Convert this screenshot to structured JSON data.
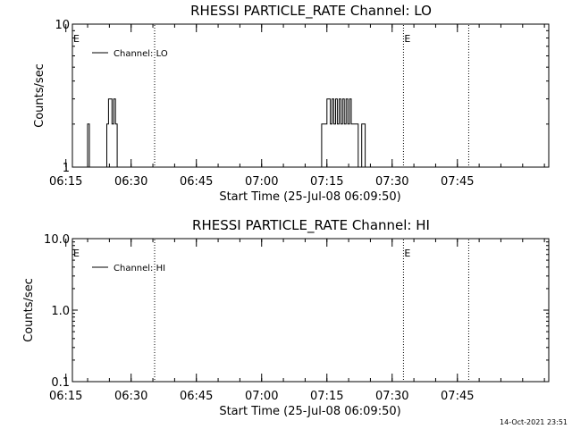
{
  "chart_data": [
    {
      "type": "line",
      "title": "RHESSI PARTICLE_RATE Channel: LO",
      "xlabel": "Start Time (25-Jul-08 06:09:50)",
      "ylabel": "Counts/sec",
      "yscale": "log",
      "ylim": [
        1,
        10
      ],
      "ytick_values": [
        1,
        10
      ],
      "ytick_labels": [
        "1",
        "10"
      ],
      "xlim_minutes": [
        6.5,
        116
      ],
      "xtick_values": [
        5,
        20,
        35,
        50,
        65,
        80,
        95
      ],
      "xtick_labels": [
        "06:15",
        "06:30",
        "06:45",
        "07:00",
        "07:15",
        "07:30",
        "07:45"
      ],
      "grid": false,
      "legend": {
        "position": "top-left",
        "entries": [
          "Channel: LO"
        ]
      },
      "event_lines_minutes": [
        25.4,
        82.6,
        97.6
      ],
      "event_markers": [
        {
          "label": "E",
          "at_minutes": 6.5
        },
        {
          "label": "E",
          "at_minutes": 82.6
        }
      ],
      "series": [
        {
          "name": "Channel: LO",
          "x": [
            9.2,
            10.0,
            10.2,
            10.4,
            10.6,
            14.0,
            14.4,
            14.8,
            15.2,
            15.6,
            16.0,
            16.4,
            16.8,
            17.2,
            17.6,
            18.0,
            63.0,
            63.8,
            64.6,
            65.0,
            65.4,
            65.8,
            66.2,
            66.6,
            67.0,
            67.4,
            67.8,
            68.2,
            68.6,
            69.0,
            69.4,
            69.8,
            70.2,
            70.6,
            71.0,
            71.4,
            71.8,
            72.2,
            72.6,
            73.0,
            73.4,
            73.8,
            74.2,
            74.6,
            75.0,
            75.4
          ],
          "y": [
            1,
            2,
            2,
            1,
            1,
            1,
            2,
            3,
            3,
            2,
            3,
            2,
            1,
            1,
            1,
            1,
            1,
            2,
            2,
            3,
            3,
            2,
            3,
            2,
            3,
            2,
            3,
            2,
            3,
            2,
            3,
            2,
            3,
            2,
            2,
            2,
            2,
            1,
            1,
            2,
            2,
            1,
            1,
            1,
            1,
            1
          ]
        }
      ]
    },
    {
      "type": "line",
      "title": "RHESSI PARTICLE_RATE Channel: HI",
      "xlabel": "Start Time (25-Jul-08 06:09:50)",
      "ylabel": "Counts/sec",
      "yscale": "log",
      "ylim": [
        0.1,
        10
      ],
      "ytick_values": [
        0.1,
        1,
        10
      ],
      "ytick_labels": [
        "0.1",
        "1.0",
        "10.0"
      ],
      "xlim_minutes": [
        6.5,
        116
      ],
      "xtick_values": [
        5,
        20,
        35,
        50,
        65,
        80,
        95
      ],
      "xtick_labels": [
        "06:15",
        "06:30",
        "06:45",
        "07:00",
        "07:15",
        "07:30",
        "07:45"
      ],
      "grid": false,
      "legend": {
        "position": "top-left",
        "entries": [
          "Channel: HI"
        ]
      },
      "event_lines_minutes": [
        25.4,
        82.6,
        97.6
      ],
      "event_markers": [
        {
          "label": "E",
          "at_minutes": 6.5
        },
        {
          "label": "E",
          "at_minutes": 82.6
        }
      ],
      "series": [
        {
          "name": "Channel: HI",
          "x": [],
          "y": []
        }
      ]
    }
  ],
  "footer_timestamp": "14-Oct-2021 23:51"
}
